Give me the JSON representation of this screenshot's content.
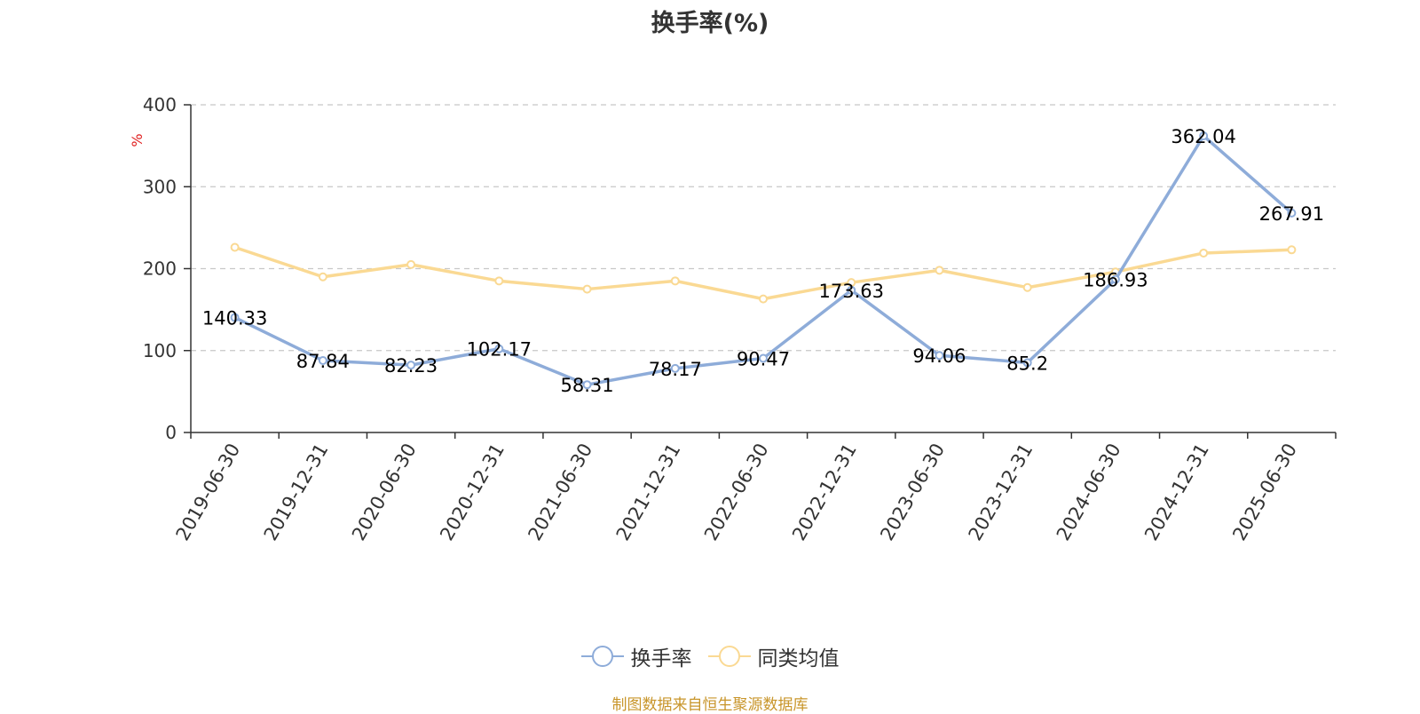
{
  "chart_data": {
    "type": "line",
    "title": "换手率(%)",
    "ylabel": "%",
    "ylim": [
      0,
      400
    ],
    "y_ticks": [
      0,
      100,
      200,
      300,
      400
    ],
    "grid": true,
    "legend_position": "bottom",
    "categories": [
      "2019-06-30",
      "2019-12-31",
      "2020-06-30",
      "2020-12-31",
      "2021-06-30",
      "2021-12-31",
      "2022-06-30",
      "2022-12-31",
      "2023-06-30",
      "2023-12-31",
      "2024-06-30",
      "2024-12-31",
      "2025-06-30"
    ],
    "series": [
      {
        "name": "换手率",
        "color": "#8eacd9",
        "show_labels": true,
        "values": [
          140.33,
          87.84,
          82.23,
          102.17,
          58.31,
          78.17,
          90.47,
          173.63,
          94.06,
          85.2,
          186.93,
          362.04,
          267.91
        ]
      },
      {
        "name": "同类均值",
        "color": "#fad993",
        "show_labels": false,
        "values": [
          226,
          190,
          205,
          185,
          175,
          185,
          163,
          183,
          198,
          177,
          196,
          219,
          223
        ]
      }
    ]
  },
  "source_note": "制图数据来自恒生聚源数据库"
}
